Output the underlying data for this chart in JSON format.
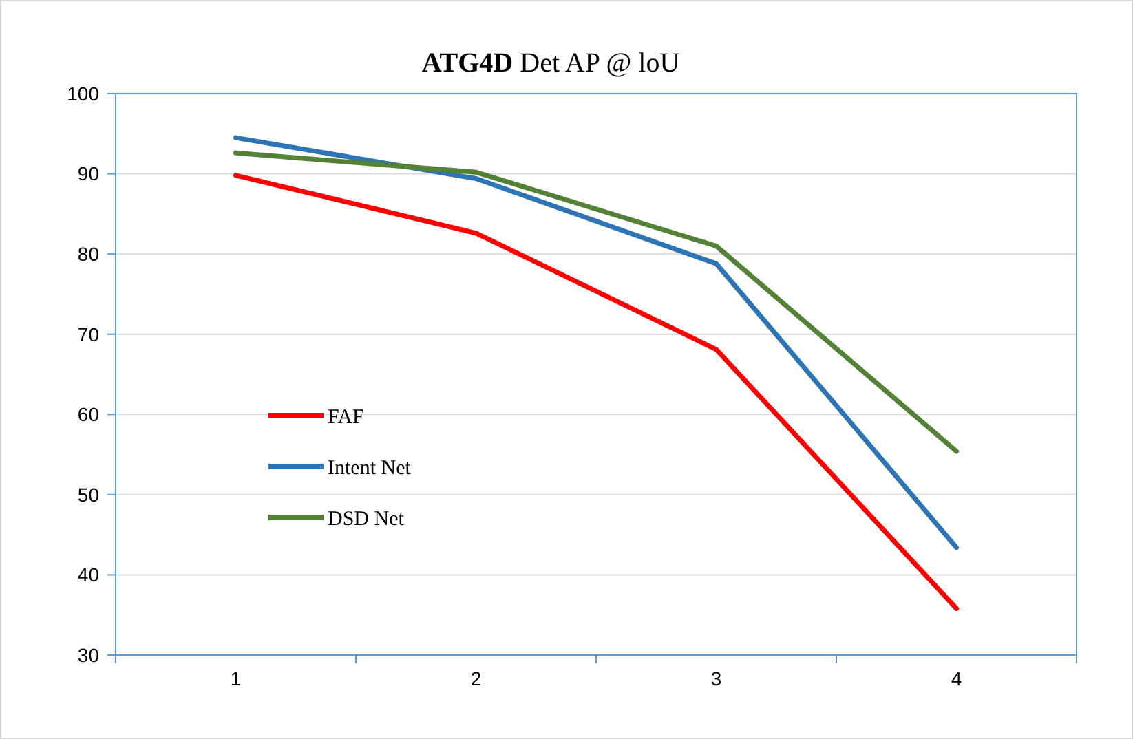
{
  "chart_data": {
    "type": "line",
    "title": "ATG4D  Det AP @ loU",
    "categories": [
      "1",
      "2",
      "3",
      "4"
    ],
    "series": [
      {
        "name": "FAF",
        "color": "#ff0000",
        "values": [
          89.8,
          82.6,
          68.1,
          35.8
        ]
      },
      {
        "name": "Intent Net",
        "color": "#2e75b6",
        "values": [
          94.5,
          89.4,
          78.8,
          43.4
        ]
      },
      {
        "name": "DSD Net",
        "color": "#538135",
        "values": [
          92.6,
          90.2,
          81.0,
          55.4
        ]
      }
    ],
    "ylim": [
      30,
      100
    ],
    "yticks": [
      30,
      40,
      50,
      60,
      70,
      80,
      90,
      100
    ],
    "grid": "y",
    "legend": "left",
    "marker": "none",
    "line_style": "solid"
  }
}
